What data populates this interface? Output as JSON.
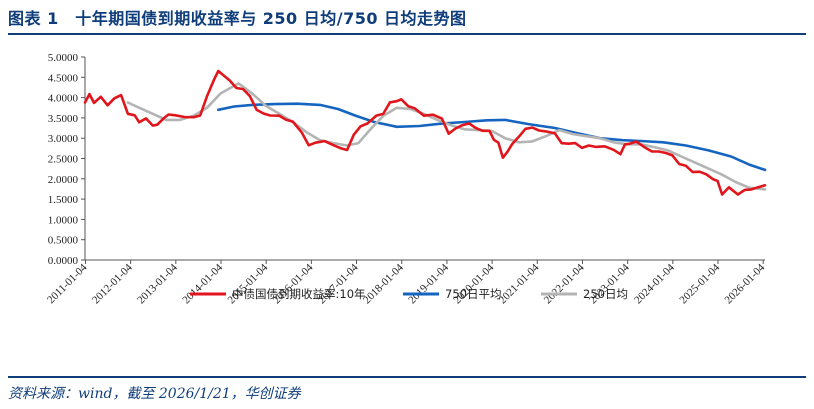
{
  "header": {
    "title": "图表 1　十年期国债到期收益率与 250 日均/750 日均走势图"
  },
  "footer": {
    "source": "资料来源：wind，截至 2026/1/21，华创证券"
  },
  "colors": {
    "brand": "#0f3d7a",
    "series_10y": "#e0161c",
    "series_750": "#1565c0",
    "series_250": "#b4b4b4"
  },
  "chart_data": {
    "type": "line",
    "title": "十年期国债到期收益率与 250 日均/750 日均走势图",
    "xlabel": "",
    "ylabel": "",
    "ylim": [
      0,
      5
    ],
    "yticks": [
      "5.0000",
      "4.5000",
      "4.0000",
      "3.5000",
      "3.0000",
      "2.5000",
      "2.0000",
      "1.5000",
      "1.0000",
      "0.5000",
      "0.0000"
    ],
    "xlim": [
      2011.0,
      2026.05
    ],
    "xticks": [
      "2011-01-04",
      "2012-01-04",
      "2013-01-04",
      "2014-01-04",
      "2015-01-04",
      "2016-01-04",
      "2017-01-04",
      "2018-01-04",
      "2019-01-04",
      "2020-01-04",
      "2021-01-04",
      "2022-01-04",
      "2023-01-04",
      "2024-01-04",
      "2025-01-04",
      "2026-01-04"
    ],
    "legend_position": "bottom",
    "series": [
      {
        "name": "中债国债到期收益率:10年",
        "x": [
          2011.0,
          2011.1,
          2011.2,
          2011.35,
          2011.5,
          2011.65,
          2011.8,
          2011.95,
          2012.1,
          2012.2,
          2012.35,
          2012.5,
          2012.6,
          2012.75,
          2012.85,
          2013.0,
          2013.2,
          2013.4,
          2013.55,
          2013.7,
          2013.85,
          2013.95,
          2014.05,
          2014.2,
          2014.35,
          2014.5,
          2014.65,
          2014.8,
          2014.95,
          2015.1,
          2015.3,
          2015.45,
          2015.6,
          2015.8,
          2015.95,
          2016.1,
          2016.3,
          2016.5,
          2016.65,
          2016.8,
          2016.95,
          2017.1,
          2017.25,
          2017.45,
          2017.6,
          2017.75,
          2017.9,
          2018.0,
          2018.15,
          2018.3,
          2018.5,
          2018.7,
          2018.9,
          2019.05,
          2019.2,
          2019.35,
          2019.5,
          2019.65,
          2019.8,
          2019.95,
          2020.05,
          2020.15,
          2020.25,
          2020.35,
          2020.45,
          2020.6,
          2020.75,
          2020.9,
          2021.05,
          2021.2,
          2021.4,
          2021.55,
          2021.7,
          2021.85,
          2022.0,
          2022.15,
          2022.3,
          2022.5,
          2022.7,
          2022.85,
          2022.95,
          2023.05,
          2023.2,
          2023.4,
          2023.55,
          2023.7,
          2023.85,
          2024.0,
          2024.15,
          2024.3,
          2024.45,
          2024.6,
          2024.75,
          2024.9,
          2025.0,
          2025.1,
          2025.25,
          2025.45,
          2025.6,
          2025.75,
          2025.9,
          2026.05
        ],
        "values": [
          3.88,
          4.07,
          3.9,
          3.98,
          3.85,
          3.95,
          4.08,
          3.6,
          3.55,
          3.42,
          3.45,
          3.35,
          3.3,
          3.52,
          3.58,
          3.55,
          3.55,
          3.48,
          3.6,
          4.0,
          4.45,
          4.65,
          4.55,
          4.45,
          4.2,
          4.25,
          4.0,
          3.72,
          3.6,
          3.55,
          3.58,
          3.42,
          3.45,
          3.1,
          2.85,
          2.88,
          2.92,
          2.85,
          2.72,
          2.75,
          3.05,
          3.32,
          3.35,
          3.55,
          3.62,
          3.85,
          3.95,
          3.92,
          3.82,
          3.72,
          3.55,
          3.6,
          3.45,
          3.15,
          3.2,
          3.35,
          3.35,
          3.25,
          3.2,
          3.15,
          3.0,
          2.85,
          2.55,
          2.65,
          2.85,
          3.05,
          3.2,
          3.3,
          3.15,
          3.2,
          3.1,
          2.88,
          2.88,
          2.85,
          2.8,
          2.78,
          2.82,
          2.78,
          2.72,
          2.62,
          2.82,
          2.9,
          2.88,
          2.8,
          2.65,
          2.68,
          2.65,
          2.55,
          2.4,
          2.28,
          2.2,
          2.15,
          2.12,
          2.0,
          1.92,
          1.65,
          1.75,
          1.65,
          1.7,
          1.75,
          1.8,
          1.84
        ]
      },
      {
        "name": "750日平均",
        "x": [
          2013.95,
          2014.3,
          2014.7,
          2015.2,
          2015.7,
          2016.2,
          2016.6,
          2017.0,
          2017.4,
          2017.9,
          2018.4,
          2018.9,
          2019.4,
          2019.9,
          2020.3,
          2020.8,
          2021.4,
          2021.9,
          2022.4,
          2022.9,
          2023.3,
          2023.8,
          2024.3,
          2024.8,
          2025.3,
          2025.7,
          2026.05
        ],
        "values": [
          3.7,
          3.78,
          3.82,
          3.84,
          3.85,
          3.82,
          3.72,
          3.55,
          3.4,
          3.28,
          3.3,
          3.36,
          3.4,
          3.44,
          3.45,
          3.35,
          3.25,
          3.12,
          3.0,
          2.95,
          2.93,
          2.9,
          2.82,
          2.7,
          2.55,
          2.35,
          2.22
        ]
      },
      {
        "name": "250日均",
        "x": [
          2011.95,
          2012.2,
          2012.5,
          2012.8,
          2013.1,
          2013.4,
          2013.7,
          2014.0,
          2014.4,
          2014.7,
          2015.0,
          2015.3,
          2015.6,
          2015.9,
          2016.2,
          2016.5,
          2016.8,
          2017.05,
          2017.3,
          2017.6,
          2017.9,
          2018.2,
          2018.5,
          2018.8,
          2019.1,
          2019.4,
          2019.7,
          2020.0,
          2020.3,
          2020.6,
          2020.9,
          2021.2,
          2021.5,
          2021.8,
          2022.1,
          2022.4,
          2022.7,
          2023.0,
          2023.3,
          2023.6,
          2023.9,
          2024.2,
          2024.5,
          2024.8,
          2025.1,
          2025.4,
          2025.7,
          2026.05
        ],
        "values": [
          3.88,
          3.75,
          3.6,
          3.45,
          3.45,
          3.55,
          3.75,
          4.1,
          4.35,
          4.1,
          3.8,
          3.6,
          3.4,
          3.15,
          2.95,
          2.88,
          2.82,
          2.88,
          3.2,
          3.55,
          3.75,
          3.72,
          3.6,
          3.45,
          3.32,
          3.22,
          3.2,
          3.18,
          3.0,
          2.9,
          2.92,
          3.05,
          3.2,
          3.1,
          3.05,
          3.0,
          2.9,
          2.85,
          2.85,
          2.78,
          2.7,
          2.55,
          2.4,
          2.25,
          2.1,
          1.92,
          1.78,
          1.74
        ]
      }
    ]
  }
}
